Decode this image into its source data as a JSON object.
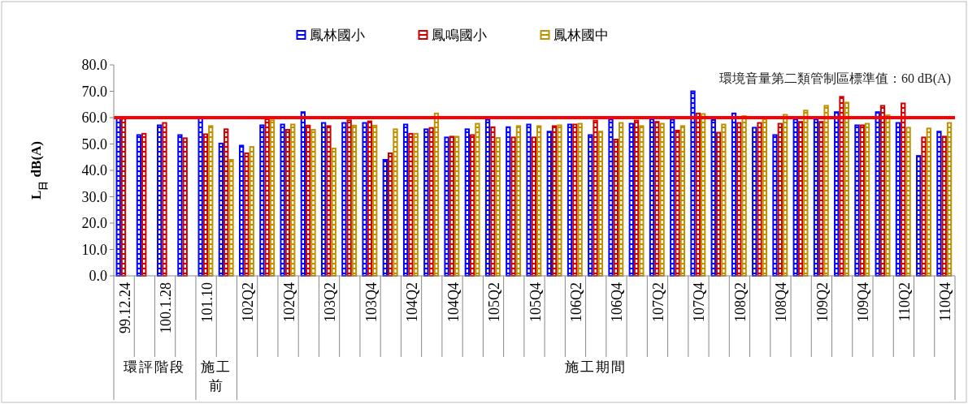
{
  "chart_data": {
    "type": "bar",
    "ylabel": "L$_{日}$ dB(A)",
    "categories": [
      "99.12.24",
      null,
      "100.1.28",
      null,
      "101.10",
      null,
      "102Q2",
      null,
      "102Q4",
      null,
      "103Q2",
      null,
      "103Q4",
      null,
      "104Q2",
      null,
      "104Q4",
      null,
      "105Q2",
      null,
      "105Q4",
      null,
      "106Q2",
      null,
      "106Q4",
      null,
      "107Q2",
      null,
      "107Q4",
      null,
      "108Q2",
      null,
      "108Q4",
      null,
      "109Q2",
      null,
      "109Q4",
      null,
      "110Q2",
      null,
      "110Q4"
    ],
    "series": [
      {
        "name": "鳳林國小",
        "color": "#0000ff",
        "values": [
          60.2,
          53.7,
          57.4,
          53.7,
          60.0,
          50.5,
          49.7,
          57.4,
          57.7,
          62.4,
          58.3,
          58.3,
          58.3,
          44.3,
          57.7,
          55.9,
          52.8,
          55.9,
          59.5,
          56.7,
          57.7,
          55.0,
          57.7,
          53.7,
          59.6,
          58.0,
          59.6,
          59.5,
          70.3,
          59.4,
          61.9,
          56.5,
          53.7,
          59.6,
          59.6,
          62.4,
          57.4,
          62.4,
          58.3,
          45.8,
          55.0
        ]
      },
      {
        "name": "鳳鳴國小",
        "color": "#cc0000",
        "values": [
          59.9,
          54.2,
          58.3,
          52.5,
          54.0,
          55.9,
          46.8,
          59.7,
          55.7,
          57.3,
          57.1,
          59.3,
          58.9,
          46.8,
          54.2,
          56.4,
          53.1,
          53.7,
          56.7,
          52.8,
          52.8,
          57.1,
          57.7,
          59.2,
          52.0,
          59.2,
          58.7,
          55.4,
          61.9,
          54.6,
          58.3,
          58.3,
          58.0,
          58.7,
          58.7,
          68.2,
          57.4,
          64.8,
          65.7,
          52.8,
          53.1
        ]
      },
      {
        "name": "鳳林國中",
        "color": "#bf9000",
        "values": [
          null,
          null,
          null,
          null,
          57.1,
          44.3,
          49.2,
          59.3,
          57.7,
          55.7,
          48.6,
          57.3,
          57.3,
          55.9,
          54.2,
          61.9,
          53.1,
          58.0,
          52.6,
          57.1,
          57.1,
          57.4,
          58.0,
          55.0,
          58.3,
          57.1,
          58.0,
          57.1,
          61.7,
          57.7,
          60.9,
          59.6,
          61.4,
          63.0,
          64.8,
          66.0,
          58.0,
          61.2,
          56.5,
          56.2,
          58.3
        ]
      }
    ],
    "ylim": [
      0,
      80
    ],
    "yticks": [
      {
        "value": 0,
        "label": "0.0"
      },
      {
        "value": 10,
        "label": "10.0"
      },
      {
        "value": 20,
        "label": "20.0"
      },
      {
        "value": 30,
        "label": "30.0"
      },
      {
        "value": 40,
        "label": "40.0"
      },
      {
        "value": 50,
        "label": "50.0"
      },
      {
        "value": 60,
        "label": "60.0"
      },
      {
        "value": 70,
        "label": "70.0"
      },
      {
        "value": 80,
        "label": "80.0"
      }
    ],
    "ref_lines": [
      {
        "axis": "y",
        "value": 60,
        "label": "環境音量第二類管制區標準值：60 dB(A)",
        "color": "#ff0000"
      }
    ],
    "annotations": [
      "環評階段",
      "施工前",
      "施工期間"
    ],
    "legend": "top",
    "grid": false
  }
}
